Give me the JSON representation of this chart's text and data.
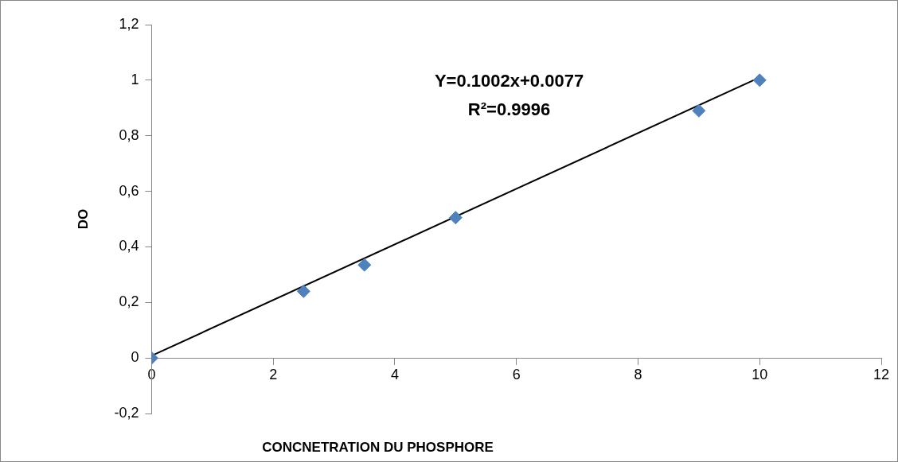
{
  "chart_data": {
    "type": "scatter",
    "xlabel": "CONCNETRATION DU PHOSPHORE",
    "ylabel": "DO",
    "x": [
      0,
      2.5,
      3.5,
      5,
      9,
      10
    ],
    "series": [
      {
        "color": "#4f81bd",
        "values": [
          0,
          0.24,
          0.335,
          0.505,
          0.89,
          1.0
        ]
      },
      {
        "type": "line",
        "color": "#000000",
        "x": [
          0,
          10
        ],
        "values": [
          0.008,
          1.01
        ],
        "marker": "none"
      }
    ],
    "xlim": [
      0,
      12
    ],
    "xticks": [
      0,
      2,
      4,
      6,
      8,
      10,
      12
    ],
    "ylim": [
      -0.2,
      1.2
    ],
    "yticks": [
      {
        "value": -0.2,
        "label": "-0,2"
      },
      0,
      {
        "value": 0.2,
        "label": "0,2"
      },
      {
        "value": 0.4,
        "label": "0,4"
      },
      {
        "value": 0.6,
        "label": "0,6"
      },
      {
        "value": 0.8,
        "label": "0,8"
      },
      1,
      {
        "value": 1.2,
        "label": "1,2"
      }
    ],
    "grid": false,
    "legend": false,
    "marker": "diamond",
    "annotations": [
      "Y=0.1002x+0.0077",
      "R²=0.9996"
    ]
  }
}
